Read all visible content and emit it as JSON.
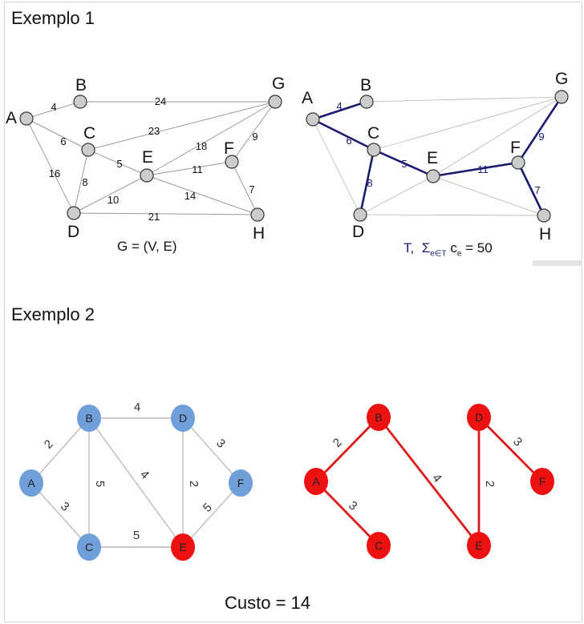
{
  "example1": {
    "heading": "Exemplo 1",
    "graph_caption": "G = (V, E)",
    "tree_caption": {
      "T": "T,",
      "sigma": "Σ",
      "subscript": "e∈T",
      "c": "c",
      "c_sub": "e",
      "rest": "= 50"
    },
    "node_color": "#cccccc",
    "tree_edge_color": "#1a1a70",
    "nodes": [
      "A",
      "B",
      "C",
      "D",
      "E",
      "F",
      "G",
      "H"
    ],
    "edges": [
      {
        "from": "A",
        "to": "B",
        "weight": "4",
        "in_tree": true
      },
      {
        "from": "B",
        "to": "G",
        "weight": "24",
        "in_tree": false
      },
      {
        "from": "A",
        "to": "C",
        "weight": "6",
        "in_tree": true
      },
      {
        "from": "A",
        "to": "D",
        "weight": "16",
        "in_tree": false
      },
      {
        "from": "C",
        "to": "G",
        "weight": "23",
        "in_tree": false
      },
      {
        "from": "C",
        "to": "E",
        "weight": "5",
        "in_tree": true
      },
      {
        "from": "C",
        "to": "D",
        "weight": "8",
        "in_tree": true
      },
      {
        "from": "E",
        "to": "G",
        "weight": "18",
        "in_tree": false
      },
      {
        "from": "G",
        "to": "F",
        "weight": "9",
        "in_tree": true
      },
      {
        "from": "E",
        "to": "F",
        "weight": "11",
        "in_tree": true
      },
      {
        "from": "D",
        "to": "E",
        "weight": "10",
        "in_tree": false
      },
      {
        "from": "E",
        "to": "H",
        "weight": "14",
        "in_tree": false
      },
      {
        "from": "F",
        "to": "H",
        "weight": "7",
        "in_tree": true
      },
      {
        "from": "D",
        "to": "H",
        "weight": "21",
        "in_tree": false
      }
    ]
  },
  "example2": {
    "heading": "Exemplo 2",
    "cost_label": "Custo = 14",
    "colors": {
      "blue": "#6f9ed8",
      "red": "#ee1111",
      "edge": "#bbbbbb",
      "tree_edge": "#dd1a1a"
    },
    "nodes": [
      {
        "id": "A",
        "color": "blue"
      },
      {
        "id": "B",
        "color": "blue"
      },
      {
        "id": "C",
        "color": "blue"
      },
      {
        "id": "D",
        "color": "blue"
      },
      {
        "id": "E",
        "color": "red"
      },
      {
        "id": "F",
        "color": "blue"
      }
    ],
    "edges": [
      {
        "from": "A",
        "to": "B",
        "weight": "2",
        "in_tree": true
      },
      {
        "from": "A",
        "to": "C",
        "weight": "3",
        "in_tree": true
      },
      {
        "from": "B",
        "to": "D",
        "weight": "4",
        "in_tree": false
      },
      {
        "from": "B",
        "to": "C",
        "weight": "5",
        "in_tree": false
      },
      {
        "from": "B",
        "to": "E",
        "weight": "4",
        "in_tree": true
      },
      {
        "from": "D",
        "to": "E",
        "weight": "2",
        "in_tree": true
      },
      {
        "from": "D",
        "to": "F",
        "weight": "3",
        "in_tree": true
      },
      {
        "from": "F",
        "to": "E",
        "weight": "5",
        "in_tree": false
      },
      {
        "from": "C",
        "to": "E",
        "weight": "5",
        "in_tree": false
      }
    ]
  }
}
